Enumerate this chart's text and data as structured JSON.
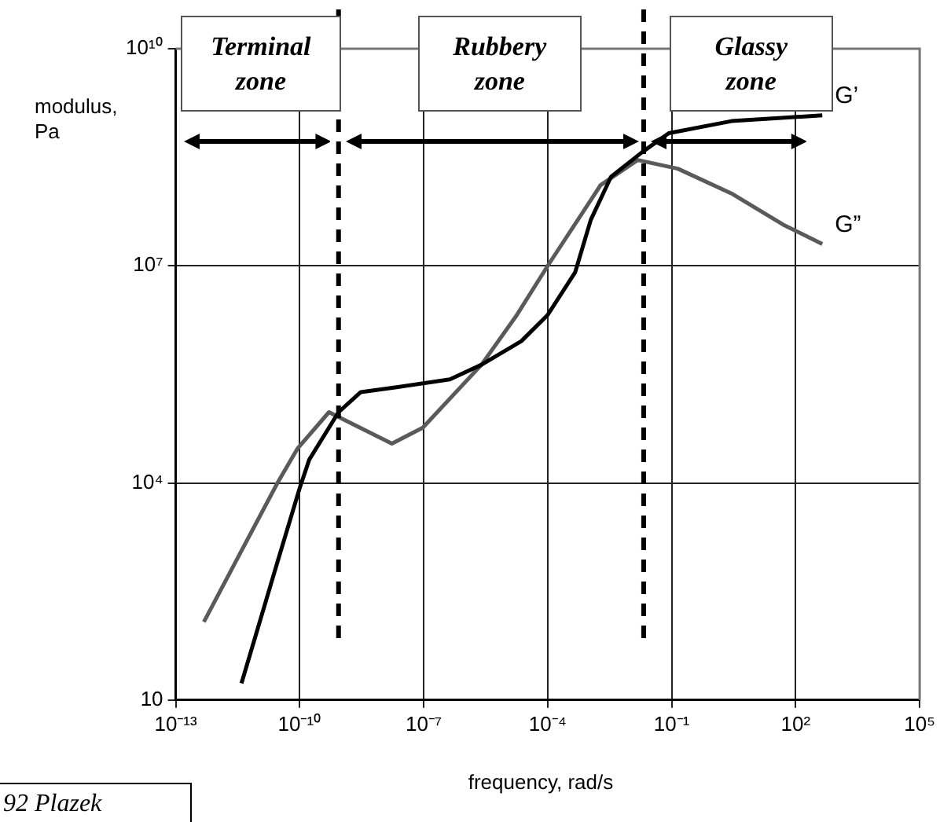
{
  "chart_data": {
    "type": "line",
    "xlabel": "frequency, rad/s",
    "ylabel": "modulus, Pa",
    "log": "xy",
    "grid": true,
    "legend": false,
    "marker": "none",
    "line_style": "solid",
    "xlim": [
      1e-13,
      100000.0
    ],
    "ylim": [
      10,
      10000000000.0
    ],
    "xticks": [
      {
        "value": 1e-13,
        "label": "10⁻¹³"
      },
      {
        "value": 1e-10,
        "label": "10⁻¹⁰"
      },
      {
        "value": 1e-07,
        "label": "10⁻⁷"
      },
      {
        "value": 0.0001,
        "label": "10⁻⁴"
      },
      {
        "value": 0.1,
        "label": "10⁻¹"
      },
      {
        "value": 100,
        "label": "10²"
      },
      {
        "value": 100000,
        "label": "10⁵"
      }
    ],
    "yticks": [
      10,
      {
        "value": 10000,
        "label": "10⁴"
      },
      {
        "value": 10000000,
        "label": "10⁷"
      },
      {
        "value": 10000000000,
        "label": "10¹⁰"
      }
    ],
    "series": [
      {
        "name": "G’",
        "color": "#000000",
        "x": [
          3.9e-12,
          2.9e-11,
          1e-10,
          1.7e-10,
          8.7e-10,
          3e-09,
          2.2e-08,
          4.3e-07,
          2.5e-06,
          2.3e-05,
          0.0001,
          0.00046,
          0.0011,
          0.0034,
          0.019,
          0.085,
          2.8,
          440
        ],
        "values": [
          17,
          810,
          8500,
          21000,
          95000,
          180000,
          210000,
          270000,
          430000,
          910000,
          2100000,
          8100000,
          43000000,
          170000000,
          370000000,
          680000000,
          1000000000,
          1200000000
        ]
      },
      {
        "name": "G”",
        "color": "#5a5a5a",
        "x": [
          4.8e-13,
          2.8e-12,
          2.9e-11,
          8.9e-11,
          5.1e-10,
          1.7e-08,
          9.5e-08,
          2.5e-06,
          1.8e-05,
          0.0001,
          0.0019,
          0.015,
          0.14,
          2.8,
          50,
          440
        ],
        "values": [
          120,
          810,
          10000,
          30000,
          95000,
          35000,
          58000,
          430000,
          2100000,
          10000000,
          130000000,
          290000000,
          220000000,
          100000000,
          37000000,
          20000000
        ]
      }
    ],
    "ref_lines": [
      {
        "axis": "x",
        "value": 8.7e-10,
        "color": "#000000",
        "line_style": "dashed"
      },
      {
        "axis": "x",
        "value": 0.021,
        "color": "#000000",
        "line_style": "dashed"
      }
    ],
    "annotations": [
      "Terminal zone",
      "Rubbery zone",
      "Glassy zone",
      "92 Plazek"
    ]
  }
}
